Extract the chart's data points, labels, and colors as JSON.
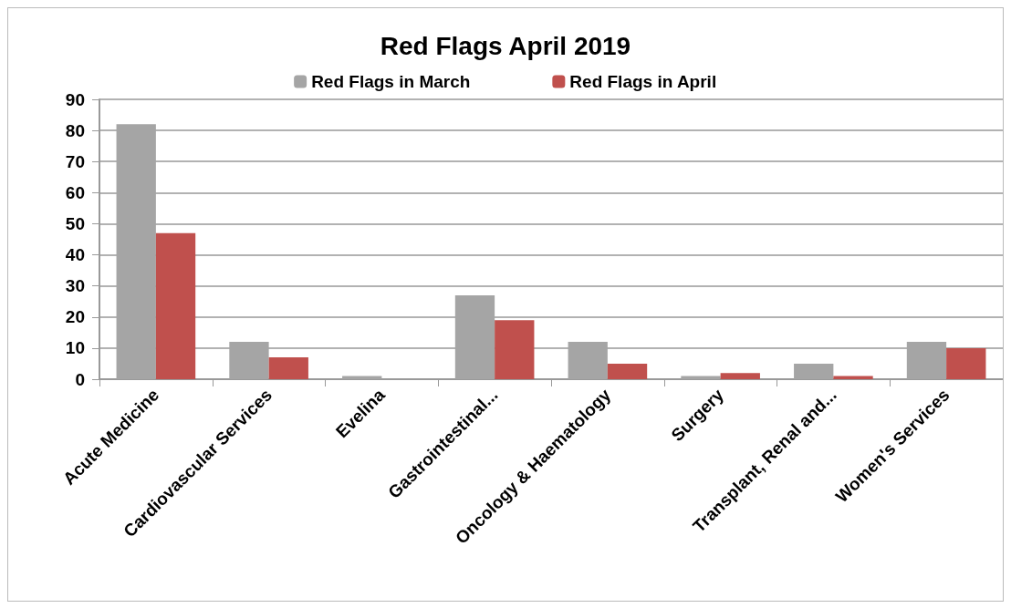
{
  "chart_data": {
    "type": "bar",
    "title": "Red Flags April 2019",
    "categories": [
      "Acute Medicine",
      "Cardiovascular Services",
      "Evelina",
      "Gastrointestinal...",
      "Oncology & Haematology",
      "Surgery",
      "Transplant, Renal and...",
      "Women's Services"
    ],
    "series": [
      {
        "name": "Red Flags in March",
        "color": "#a5a5a5",
        "values": [
          82,
          12,
          1,
          27,
          12,
          1,
          5,
          12
        ]
      },
      {
        "name": "Red Flags in April",
        "color": "#c0504d",
        "values": [
          47,
          7,
          0,
          19,
          5,
          2,
          1,
          10
        ]
      }
    ],
    "ylim": [
      0,
      90
    ],
    "yticks": [
      0,
      10,
      20,
      30,
      40,
      50,
      60,
      70,
      80,
      90
    ],
    "grid": "y",
    "legend": "top"
  }
}
